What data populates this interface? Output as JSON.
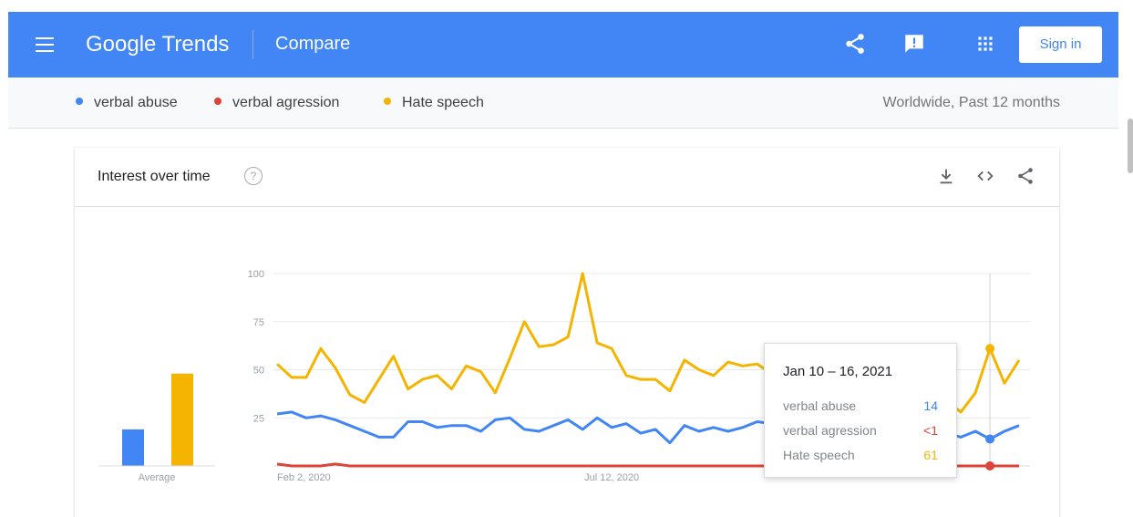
{
  "header": {
    "brand": "Google Trends",
    "page": "Compare",
    "icons": [
      "menu-icon",
      "share-icon",
      "feedback-icon",
      "apps-icon"
    ],
    "sign_in": "Sign in",
    "color": "#4285f4"
  },
  "terms": [
    {
      "label": "verbal abuse",
      "color": "#4285f4"
    },
    {
      "label": "verbal agression",
      "color": "#db4437"
    },
    {
      "label": "Hate speech",
      "color": "#f4b400"
    }
  ],
  "region": "Worldwide, Past 12 months",
  "card": {
    "title": "Interest over time",
    "help": "?",
    "icons": [
      "download-icon",
      "embed-icon",
      "share-icon"
    ]
  },
  "tooltip": {
    "date": "Jan 10 – 16, 2021",
    "rows": [
      {
        "label": "verbal abuse",
        "value": "14"
      },
      {
        "label": "verbal agression",
        "value": "<1"
      },
      {
        "label": "Hate speech",
        "value": "61"
      }
    ]
  },
  "chart_data": {
    "type": "line",
    "ylim": [
      0,
      100
    ],
    "yticks": [
      "100",
      "75",
      "50",
      "25"
    ],
    "xticks": [
      {
        "label": "Feb 2, 2020",
        "index": 0
      },
      {
        "label": "Jul 12, 2020",
        "index": 23
      }
    ],
    "average": {
      "label": "Average",
      "values": [
        19,
        48
      ]
    },
    "series": [
      {
        "name": "Hate speech",
        "color": "#f4b400",
        "values": [
          53,
          46,
          46,
          61,
          51,
          37,
          33,
          45,
          57,
          40,
          45,
          47,
          40,
          52,
          49,
          38,
          56,
          75,
          62,
          63,
          67,
          100,
          64,
          61,
          47,
          45,
          45,
          39,
          55,
          50,
          47,
          54,
          52,
          53,
          48,
          48,
          46,
          50,
          52,
          45,
          42,
          42,
          50,
          47,
          46,
          40,
          34,
          28,
          38,
          61,
          43,
          55
        ]
      },
      {
        "name": "verbal abuse",
        "color": "#4285f4",
        "values": [
          27,
          28,
          25,
          26,
          24,
          21,
          18,
          15,
          15,
          23,
          23,
          20,
          21,
          21,
          18,
          24,
          25,
          19,
          18,
          21,
          24,
          19,
          25,
          20,
          22,
          17,
          19,
          12,
          21,
          18,
          20,
          18,
          20,
          23,
          22,
          18,
          19,
          15,
          17,
          19,
          20,
          17,
          19,
          19,
          14,
          14,
          17,
          15,
          18,
          14,
          18,
          21
        ]
      },
      {
        "name": "verbal agression",
        "color": "#db4437",
        "values": [
          1,
          0,
          0,
          0,
          1,
          0,
          0,
          0,
          0,
          0,
          0,
          0,
          0,
          0,
          0,
          0,
          0,
          0,
          0,
          0,
          0,
          0,
          0,
          0,
          0,
          0,
          0,
          0,
          0,
          0,
          0,
          0,
          0,
          0,
          0,
          0,
          0,
          0,
          0,
          0,
          0,
          0,
          0,
          0,
          0,
          0,
          0,
          0,
          0,
          0,
          0,
          0
        ]
      }
    ],
    "highlight_index": 49
  }
}
